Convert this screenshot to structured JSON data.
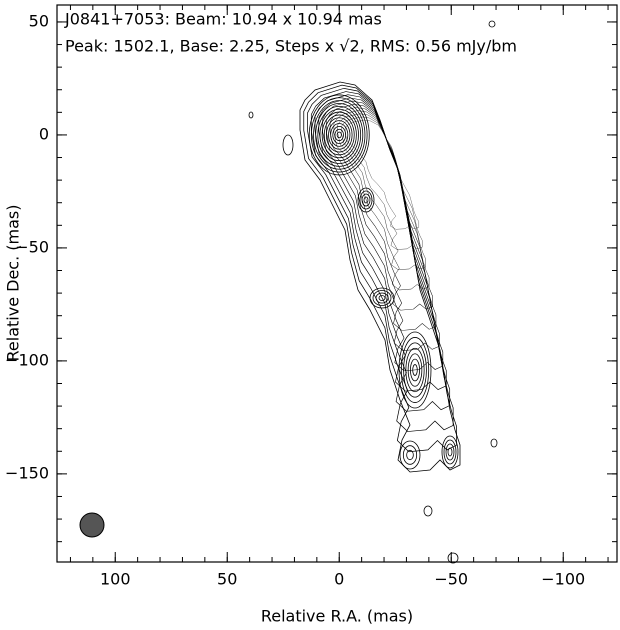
{
  "chart_data": {
    "type": "contour",
    "title": "J0841+7053: Beam: 10.94 x 10.94 mas",
    "subtitle": "Peak: 1502.1, Base: 2.25, Steps x √2, RMS: 0.56 mJy/bm",
    "x_label": "Relative R.A. (mas)",
    "y_label": "Relative Dec. (mas)",
    "xlim": [
      126,
      -124
    ],
    "ylim": [
      -189,
      57.5
    ],
    "xticks": [
      {
        "value": 100,
        "label": "100"
      },
      {
        "value": 50,
        "label": "50"
      },
      0,
      {
        "value": -50,
        "label": "−50"
      },
      {
        "value": -100,
        "label": "−100"
      }
    ],
    "yticks": [
      50,
      0,
      {
        "value": -50,
        "label": "−50"
      },
      {
        "value": -100,
        "label": "−100"
      },
      {
        "value": -150,
        "label": "−150"
      }
    ]
  }
}
